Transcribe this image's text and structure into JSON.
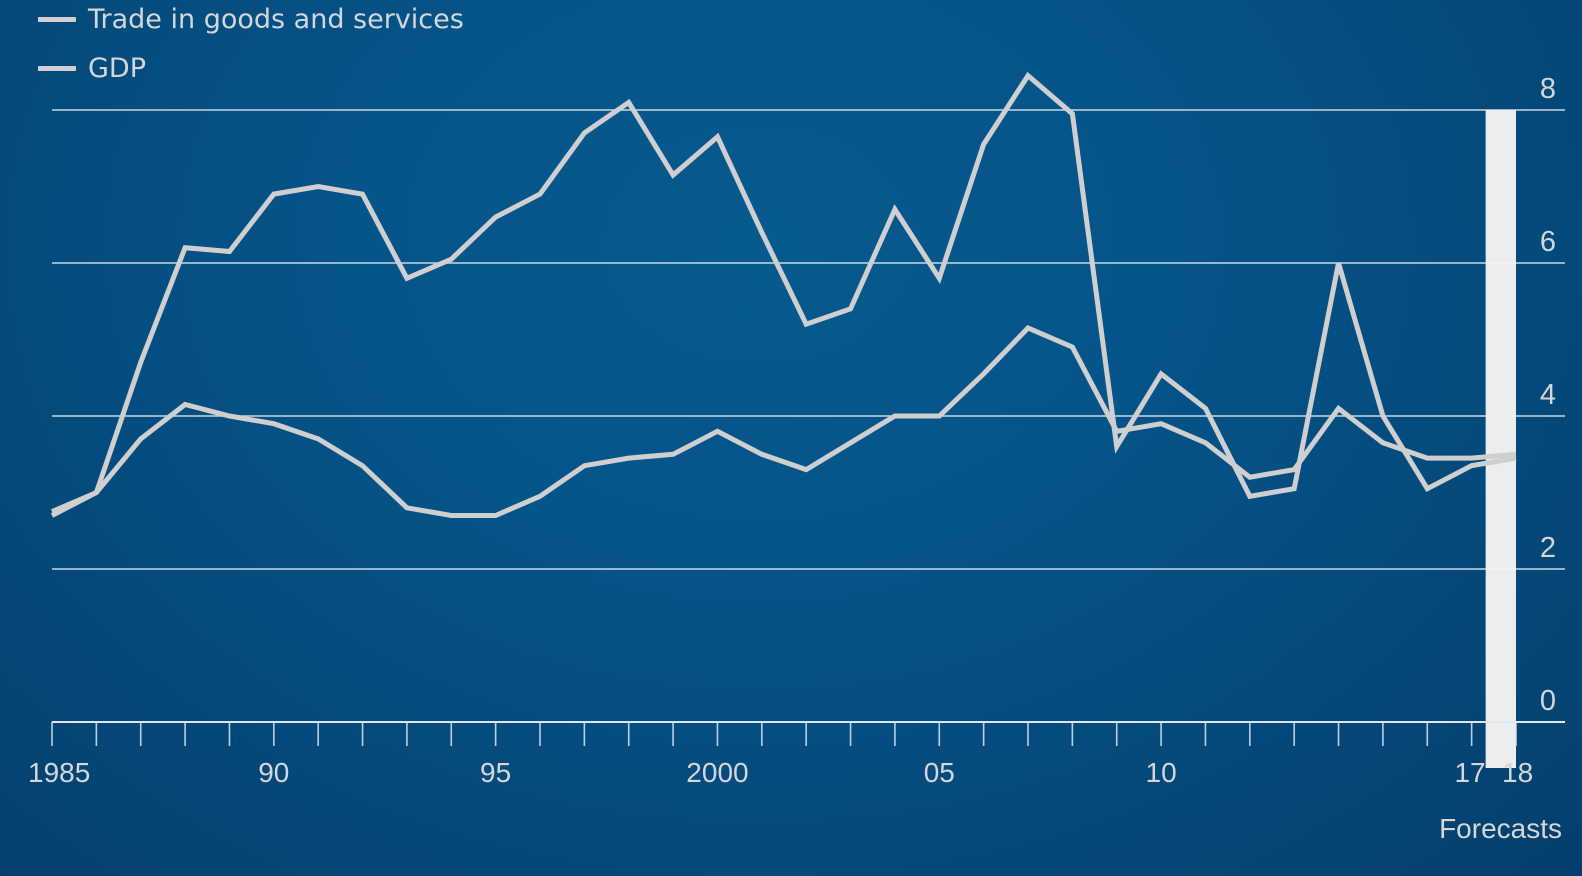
{
  "chart_data": {
    "type": "line",
    "title": "",
    "xlabel": "",
    "ylabel": "",
    "ylim": [
      0,
      8
    ],
    "yticks": [
      0,
      2,
      4,
      6,
      8
    ],
    "y_tick_labels": [
      "0",
      "2",
      "4",
      "6",
      "8"
    ],
    "x_range": [
      1985,
      2018
    ],
    "x_tick_labels": [
      {
        "year": 1985,
        "label": "1985"
      },
      {
        "year": 1990,
        "label": "90"
      },
      {
        "year": 1995,
        "label": "95"
      },
      {
        "year": 2000,
        "label": "2000"
      },
      {
        "year": 2005,
        "label": "05"
      },
      {
        "year": 2010,
        "label": "10"
      },
      {
        "year": 2017,
        "label": "17"
      },
      {
        "year": 2018,
        "label": "18"
      }
    ],
    "grid": true,
    "y_axis_position": "right",
    "legend_position": "top-left",
    "forecast": {
      "label": "Forecasts",
      "start": 2017,
      "end": 2018
    },
    "x": [
      1985,
      1986,
      1987,
      1988,
      1989,
      1990,
      1991,
      1992,
      1993,
      1994,
      1995,
      1996,
      1997,
      1998,
      1999,
      2000,
      2001,
      2002,
      2003,
      2004,
      2005,
      2006,
      2007,
      2008,
      2009,
      2010,
      2011,
      2012,
      2013,
      2014,
      2015,
      2016,
      2017,
      2018
    ],
    "series": [
      {
        "name": "Trade in goods and services",
        "values": [
          2.7,
          3.0,
          4.7,
          6.2,
          6.15,
          6.9,
          7.0,
          6.9,
          5.8,
          6.05,
          6.6,
          6.9,
          7.7,
          8.1,
          7.15,
          7.65,
          6.4,
          5.2,
          5.4,
          6.7,
          5.8,
          7.55,
          8.45,
          7.95,
          3.6,
          4.55,
          4.1,
          2.95,
          3.05,
          6.0,
          4.0,
          3.05,
          3.35,
          3.45
        ]
      },
      {
        "name": "GDP",
        "values": [
          2.75,
          3.0,
          3.7,
          4.15,
          4.0,
          3.9,
          3.7,
          3.35,
          2.8,
          2.7,
          2.7,
          2.95,
          3.35,
          3.45,
          3.5,
          3.8,
          3.5,
          3.3,
          3.65,
          4.0,
          4.0,
          4.55,
          5.15,
          4.9,
          3.8,
          3.9,
          3.65,
          3.2,
          3.3,
          4.1,
          3.65,
          3.45,
          3.45,
          3.5
        ]
      }
    ]
  },
  "colors": {
    "line": "#cfcfcf",
    "grid": "#dfe6ee",
    "text": "#d4d6d8",
    "forecast_band": "#f3f3f3"
  }
}
